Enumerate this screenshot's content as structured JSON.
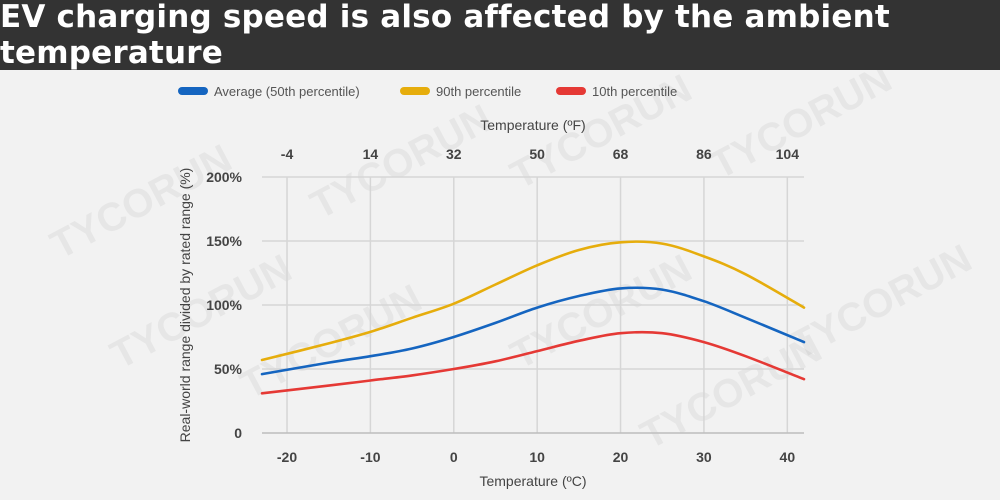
{
  "title": "EV charging speed is also affected by the ambient temperature",
  "chart_data": {
    "type": "line",
    "title": "EV charging speed is also affected by the ambient temperature",
    "xlabel": "Temperature (ºC)",
    "x2label": "Temperature (ºF)",
    "ylabel": "Real-world range divided by rated range (%)",
    "xlim": [
      -23,
      42
    ],
    "ylim": [
      0,
      200
    ],
    "x_ticks": [
      -20,
      -10,
      0,
      10,
      20,
      30,
      40
    ],
    "x2_ticks": [
      {
        "label": "-4",
        "c": -20
      },
      {
        "label": "14",
        "c": -10
      },
      {
        "label": "32",
        "c": 0
      },
      {
        "label": "50",
        "c": 10
      },
      {
        "label": "68",
        "c": 20
      },
      {
        "label": "86",
        "c": 30
      },
      {
        "label": "104",
        "c": 40
      }
    ],
    "y_ticks": [
      {
        "value": 0,
        "label": "0"
      },
      {
        "value": 50,
        "label": "50%"
      },
      {
        "value": 100,
        "label": "100%"
      },
      {
        "value": 150,
        "label": "150%"
      },
      {
        "value": 200,
        "label": "200%"
      }
    ],
    "x": [
      -23,
      -15,
      -10,
      -5,
      0,
      5,
      10,
      15,
      20,
      25,
      30,
      35,
      42
    ],
    "series": [
      {
        "name": "Average (50th percentile)",
        "color": "#1565c0",
        "values": [
          46,
          55,
          60,
          66,
          75,
          86,
          98,
          107,
          113,
          112,
          103,
          90,
          71
        ]
      },
      {
        "name": "90th percentile",
        "color": "#e6ad0c",
        "values": [
          57,
          70,
          79,
          90,
          101,
          116,
          131,
          143,
          149,
          148,
          138,
          124,
          98
        ]
      },
      {
        "name": "10th percentile",
        "color": "#e53935",
        "values": [
          31,
          37,
          41,
          45,
          50,
          56,
          64,
          72,
          78,
          78,
          71,
          60,
          42
        ]
      }
    ],
    "watermark": "TYCORUN"
  }
}
